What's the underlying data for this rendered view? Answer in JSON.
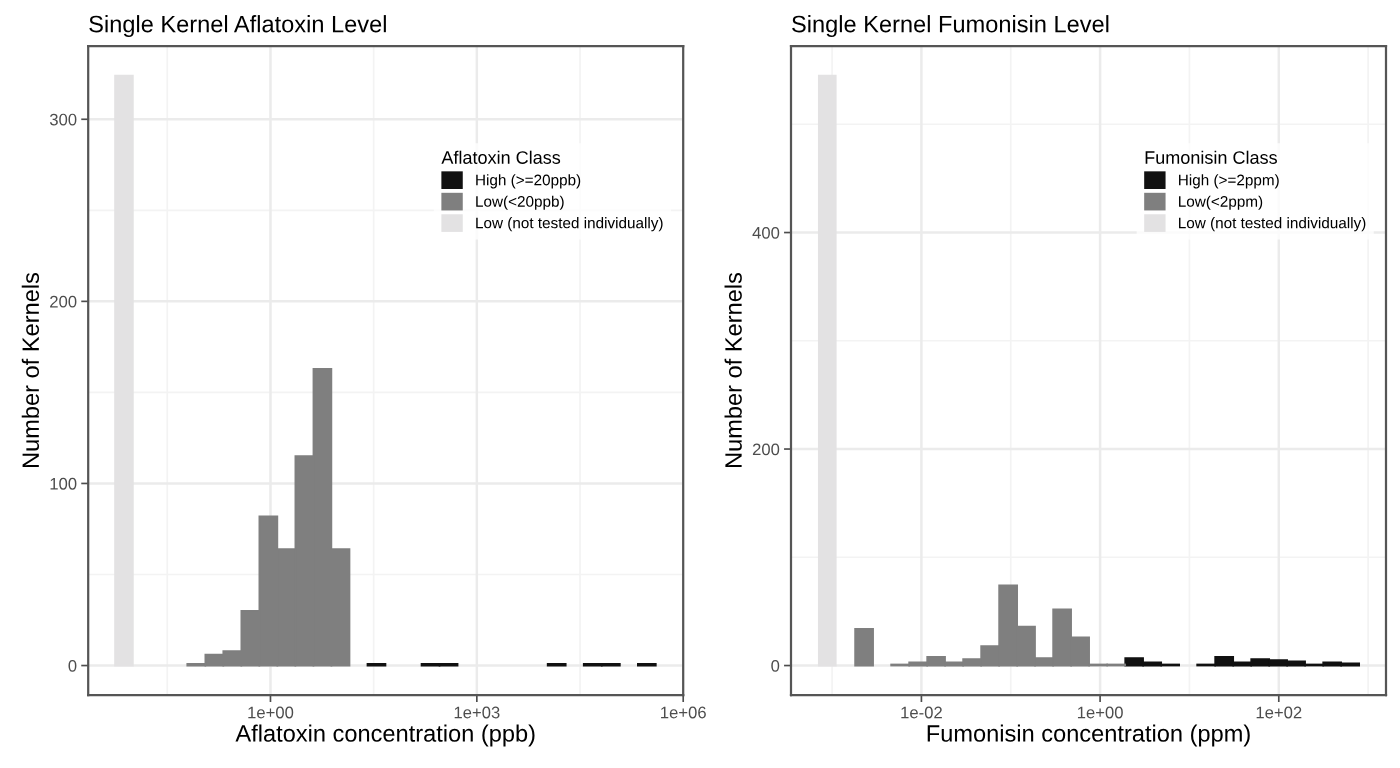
{
  "chart_data": [
    {
      "type": "histogram",
      "title": "Single Kernel Aflatoxin Level",
      "xlabel": "Aflatoxin concentration (ppb)",
      "ylabel": "Number of Kernels",
      "legend_title": "Aflatoxin Class",
      "log": "x",
      "grid": true,
      "legend": "top right",
      "xlim": [
        0.00224,
        1000000
      ],
      "xticks": [
        {
          "value": 1,
          "label": "1e+00"
        },
        {
          "value": 1000,
          "label": "1e+03"
        },
        {
          "value": 1000000,
          "label": "1e+06"
        }
      ],
      "ylim": [
        -16.2,
        340.2
      ],
      "yticks": [
        0,
        100,
        200,
        300
      ],
      "bins": [
        0.0055,
        0.01,
        0.0617,
        0.113,
        0.206,
        0.377,
        0.689,
        1.26,
        2.3,
        4.21,
        7.69,
        14.1,
        25.7,
        47.0,
        157,
        287,
        525,
        10700,
        19600,
        35800,
        65500,
        120000,
        219000,
        400000
      ],
      "series": [
        {
          "name": "High (>=20ppb)",
          "color": "#111111",
          "values": [
            null,
            null,
            null,
            null,
            null,
            null,
            null,
            null,
            null,
            null,
            null,
            null,
            1,
            null,
            1,
            1,
            null,
            1,
            null,
            1,
            1,
            null,
            1
          ]
        },
        {
          "name": "Low(<20ppb)",
          "color": "#7f7f7f",
          "values": [
            null,
            null,
            1,
            6,
            8,
            30,
            82,
            64,
            115,
            163,
            64,
            null,
            null,
            null,
            null,
            null,
            null,
            null,
            null,
            null,
            null,
            null,
            null
          ]
        },
        {
          "name": "Low (not tested individually)",
          "color": "#e3e2e3",
          "values": [
            324,
            null,
            null,
            null,
            null,
            null,
            null,
            null,
            null,
            null,
            null,
            null,
            null,
            null,
            null,
            null,
            null,
            null,
            null,
            null,
            null,
            null,
            null
          ]
        }
      ]
    },
    {
      "type": "histogram",
      "title": "Single Kernel Fumonisin Level",
      "xlabel": "Fumonisin concentration (ppm)",
      "ylabel": "Number of Kernels",
      "legend_title": "Fumonisin Class",
      "log": "x",
      "grid": true,
      "legend": "top right",
      "xlim": [
        0.000347,
        1585
      ],
      "xticks": [
        {
          "value": 0.01,
          "label": "1e-02"
        },
        {
          "value": 1,
          "label": "1e+00"
        },
        {
          "value": 100,
          "label": "1e+02"
        }
      ],
      "ylim": [
        -27.25,
        572.25
      ],
      "yticks": [
        0,
        200,
        400
      ],
      "bins": [
        0.00071,
        0.0011,
        0.00181,
        0.00288,
        0.00458,
        0.00729,
        0.0116,
        0.0184,
        0.0293,
        0.0466,
        0.0741,
        0.118,
        0.187,
        0.298,
        0.474,
        0.754,
        1.2,
        1.91,
        3.03,
        4.83,
        7.67,
        12.2,
        19.4,
        30.9,
        49.1,
        78.1,
        124,
        197,
        314,
        499,
        794
      ],
      "series": [
        {
          "name": "High (>=2ppm)",
          "color": "#111111",
          "values": [
            null,
            null,
            null,
            null,
            null,
            null,
            null,
            null,
            null,
            null,
            null,
            null,
            null,
            null,
            null,
            null,
            null,
            7,
            3,
            1,
            null,
            1,
            8,
            3,
            6,
            5,
            4,
            1,
            3,
            2
          ]
        },
        {
          "name": "Low(<2ppm)",
          "color": "#7f7f7f",
          "values": [
            null,
            null,
            34,
            null,
            1,
            3,
            8,
            3,
            6,
            18,
            74,
            36,
            7,
            52,
            26,
            1,
            1,
            null,
            null,
            null,
            null,
            null,
            null,
            null,
            null,
            null,
            null,
            null,
            null,
            null
          ]
        },
        {
          "name": "Low (not tested individually)",
          "color": "#e3e2e3",
          "values": [
            545,
            null,
            null,
            null,
            null,
            null,
            null,
            null,
            null,
            null,
            null,
            null,
            null,
            null,
            null,
            null,
            null,
            null,
            null,
            null,
            null,
            null,
            null,
            null,
            null,
            null,
            null,
            null,
            null,
            null
          ]
        }
      ]
    }
  ]
}
